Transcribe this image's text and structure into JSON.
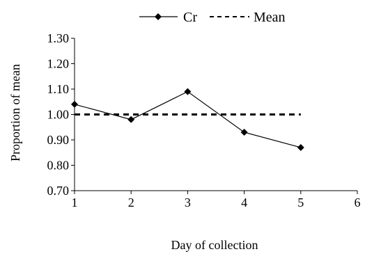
{
  "chart_data": {
    "type": "line",
    "xlabel": "Day of collection",
    "ylabel": "Proportion of mean",
    "xlim": [
      1,
      6
    ],
    "ylim": [
      0.7,
      1.3
    ],
    "x_ticks": [
      "1",
      "2",
      "3",
      "4",
      "5",
      "6"
    ],
    "y_ticks": [
      "0.70",
      "0.80",
      "0.90",
      "1.00",
      "1.10",
      "1.20",
      "1.30"
    ],
    "grid": false,
    "legend_position": "top",
    "series": [
      {
        "name": "Cr",
        "style": "solid line with diamond markers",
        "color": "#000000",
        "x": [
          1,
          2,
          3,
          4,
          5
        ],
        "values": [
          1.04,
          0.98,
          1.09,
          0.93,
          0.87
        ]
      },
      {
        "name": "Mean",
        "style": "dashed line",
        "color": "#000000",
        "x": [
          1,
          5
        ],
        "values": [
          1.0,
          1.0
        ]
      }
    ]
  }
}
